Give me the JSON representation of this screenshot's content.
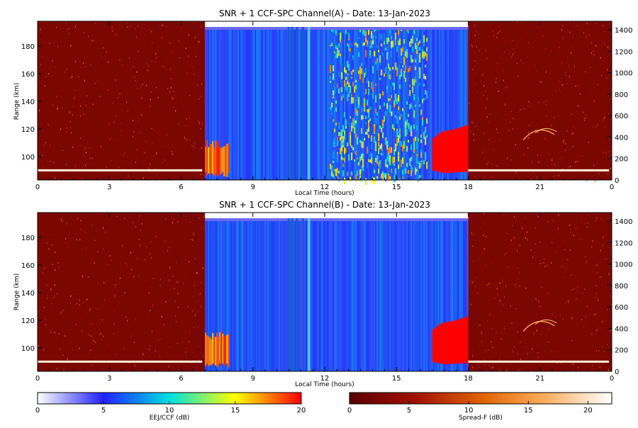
{
  "chart_data": [
    {
      "type": "heatmap",
      "title": "SNR + 1 CCF-SPC Channel(A) - Date: 13-Jan-2023",
      "xlabel": "Local Time (hours)",
      "ylabel": "Range (km)",
      "xlim": [
        0,
        24
      ],
      "x_ticks": [
        "0",
        "3",
        "6",
        "9",
        "12",
        "15",
        "18",
        "21",
        "0"
      ],
      "ylim": [
        83,
        198
      ],
      "y_ticks": [
        100,
        120,
        140,
        160,
        180
      ],
      "y2lim": [
        0,
        1480
      ],
      "y2_ticks": [
        0,
        200,
        400,
        600,
        800,
        1000,
        1200,
        1400
      ],
      "segments": [
        {
          "from": 0,
          "to": 7,
          "colormap": "spread-f"
        },
        {
          "from": 7,
          "to": 18,
          "colormap": "eej-ccf"
        },
        {
          "from": 18,
          "to": 24,
          "colormap": "spread-f"
        }
      ]
    },
    {
      "type": "heatmap",
      "title": "SNR + 1 CCF-SPC Channel(B) - Date: 13-Jan-2023",
      "xlabel": "Local Time (hours)",
      "ylabel": "Range (km)",
      "xlim": [
        0,
        24
      ],
      "x_ticks": [
        "0",
        "3",
        "6",
        "9",
        "12",
        "15",
        "18",
        "21",
        "0"
      ],
      "ylim": [
        83,
        198
      ],
      "y_ticks": [
        100,
        120,
        140,
        160,
        180
      ],
      "y2lim": [
        0,
        1480
      ],
      "y2_ticks": [
        0,
        200,
        400,
        600,
        800,
        1000,
        1200,
        1400
      ],
      "segments": [
        {
          "from": 0,
          "to": 7,
          "colormap": "spread-f"
        },
        {
          "from": 7,
          "to": 18,
          "colormap": "eej-ccf"
        },
        {
          "from": 18,
          "to": 24,
          "colormap": "spread-f"
        }
      ]
    }
  ],
  "colorbars": [
    {
      "label": "EEJ/CCF (dB)",
      "range": [
        0,
        20
      ],
      "ticks": [
        "0",
        "5",
        "10",
        "15",
        "20"
      ],
      "colors": [
        "#ffffff",
        "#2020ff",
        "#00e0e0",
        "#ffff00",
        "#ff0000"
      ]
    },
    {
      "label": "Spread-F (dB)",
      "range": [
        0,
        22
      ],
      "ticks": [
        "0",
        "5",
        "10",
        "15",
        "20"
      ],
      "colors": [
        "#5a0000",
        "#a01000",
        "#e06000",
        "#ffb060",
        "#ffffff"
      ]
    }
  ]
}
